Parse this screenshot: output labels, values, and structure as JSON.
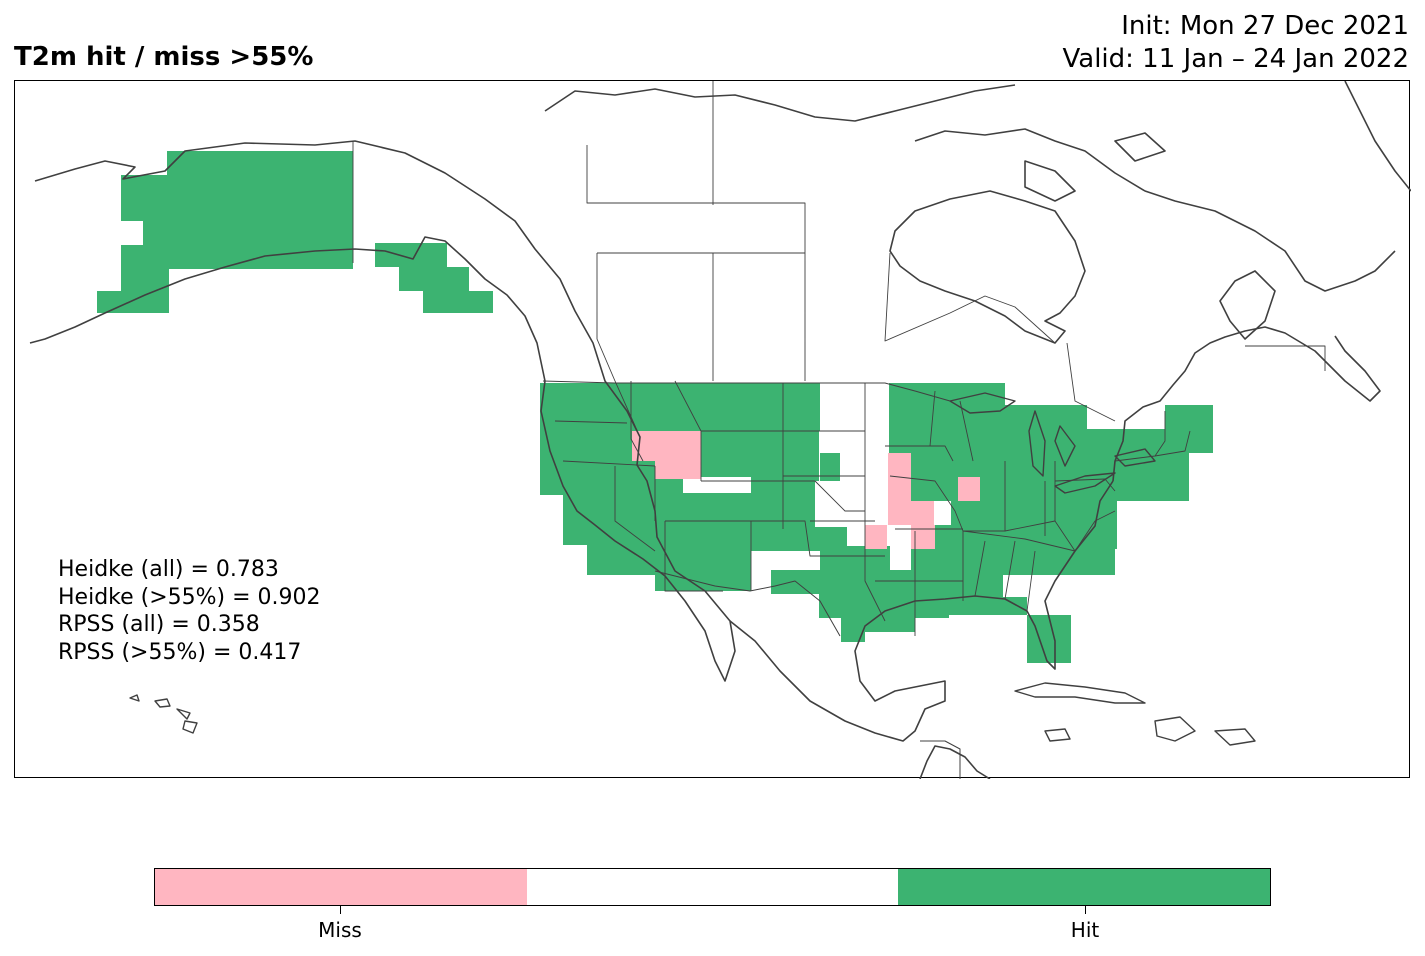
{
  "title": "T2m hit / miss  >55%",
  "init_line": "Init: Mon 27 Dec 2021",
  "valid_line": "Valid: 11 Jan – 24 Jan 2022",
  "stats": [
    "Heidke (all) = 0.783",
    "Heidke (>55%) = 0.902",
    "RPSS (all) = 0.358",
    "RPSS (>55%) = 0.417"
  ],
  "colors": {
    "hit": "#3cb371",
    "miss": "#ffb6c1",
    "neutral": "#ffffff",
    "coast": "#404040"
  },
  "colorbar": {
    "labels": [
      "Miss",
      "Hit"
    ],
    "segments": [
      "miss",
      "neutral",
      "hit"
    ]
  }
}
